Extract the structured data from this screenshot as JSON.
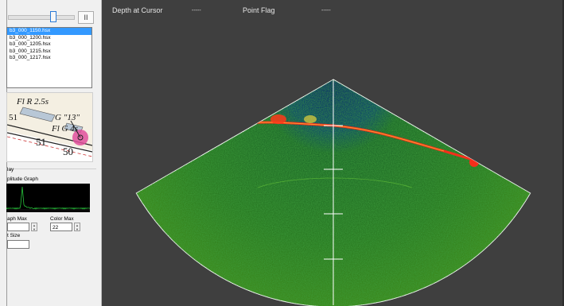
{
  "files": {
    "items": [
      {
        "label": "b3_000_1150.hsx",
        "selected": true
      },
      {
        "label": "b3_000_1200.hsx",
        "selected": false
      },
      {
        "label": "b3_000_1205.hsx",
        "selected": false
      },
      {
        "label": "b3_000_1215.hsx",
        "selected": false
      },
      {
        "label": "b3_000_1217.hsx",
        "selected": false
      }
    ]
  },
  "player": {
    "pause_icon": "pause-icon",
    "pause_glyph": "II",
    "position": 0.7
  },
  "chart": {
    "labels": [
      "Fl R 2.5s",
      "G \"13\"",
      "Fl G 4s",
      "51",
      "51",
      "50"
    ]
  },
  "display": {
    "group_label": "lay",
    "amplitude_label": "plitude Graph",
    "graph_max_label": "aph Max",
    "color_max_label": "Color Max",
    "color_max_value": "22",
    "graph_max_value": "",
    "size_label": "t Size",
    "size_value": ""
  },
  "header": {
    "depth_label": "Depth at Cursor",
    "depth_value": "-----",
    "flag_label": "Point Flag",
    "flag_value": "-----"
  },
  "colors": {
    "amplitude_line": "#27c23a",
    "sonar_high": "#ff2a1a",
    "sonar_low": "#1f7a2a",
    "sonar_water": "#0b3a6e"
  }
}
